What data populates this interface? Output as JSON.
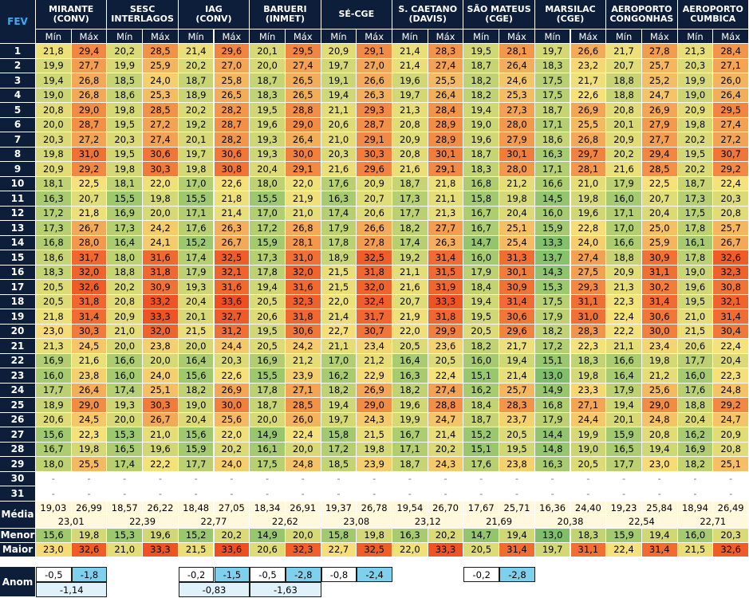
{
  "chart_data": {
    "type": "table",
    "title": "FEV",
    "stations": [
      {
        "name": "MIRANTE",
        "sub": "(CONV)"
      },
      {
        "name": "SESC",
        "sub": "INTERLAGOS"
      },
      {
        "name": "IAG",
        "sub": "(CONV)"
      },
      {
        "name": "BARUERI",
        "sub": "(INMET)"
      },
      {
        "name": "SÉ-CGE",
        "sub": ""
      },
      {
        "name": "S. CAETANO",
        "sub": "(DAVIS)"
      },
      {
        "name": "SÃO MATEUS",
        "sub": "(CGE)"
      },
      {
        "name": "MARSILAC",
        "sub": "(CGE)"
      },
      {
        "name": "AEROPORTO",
        "sub": "CONGONHAS"
      },
      {
        "name": "AEROPORTO",
        "sub": "CUMBICA"
      }
    ],
    "min_label": "Mín",
    "max_label": "Máx",
    "days": [
      "1",
      "2",
      "3",
      "4",
      "5",
      "6",
      "7",
      "8",
      "9",
      "10",
      "11",
      "12",
      "13",
      "14",
      "15",
      "16",
      "17",
      "18",
      "19",
      "20",
      "21",
      "22",
      "23",
      "24",
      "25",
      "26",
      "27",
      "28",
      "29",
      "30",
      "31"
    ],
    "rows": [
      [
        "21,8",
        "29,4",
        "20,2",
        "28,5",
        "21,4",
        "29,6",
        "20,1",
        "29,5",
        "20,9",
        "29,1",
        "21,4",
        "28,3",
        "19,5",
        "28,1",
        "19,7",
        "26,6",
        "21,7",
        "27,8",
        "21,3",
        "28,4"
      ],
      [
        "19,9",
        "27,7",
        "19,9",
        "25,9",
        "20,2",
        "27,0",
        "20,0",
        "27,4",
        "19,7",
        "27,0",
        "21,4",
        "27,4",
        "18,7",
        "26,4",
        "18,3",
        "23,2",
        "20,7",
        "25,7",
        "20,3",
        "27,1"
      ],
      [
        "19,4",
        "26,8",
        "18,5",
        "24,0",
        "18,7",
        "25,8",
        "18,7",
        "26,5",
        "19,1",
        "26,6",
        "19,6",
        "25,5",
        "18,2",
        "24,6",
        "17,5",
        "21,7",
        "18,8",
        "25,2",
        "19,9",
        "26,0"
      ],
      [
        "19,0",
        "26,8",
        "18,6",
        "25,3",
        "18,9",
        "26,5",
        "18,3",
        "26,5",
        "19,4",
        "26,3",
        "19,7",
        "26,4",
        "18,2",
        "25,3",
        "17,5",
        "22,6",
        "18,8",
        "24,7",
        "19,0",
        "26,4"
      ],
      [
        "20,8",
        "29,0",
        "19,8",
        "28,5",
        "20,2",
        "28,2",
        "19,5",
        "28,8",
        "21,1",
        "29,3",
        "21,3",
        "28,4",
        "19,4",
        "27,3",
        "18,7",
        "26,9",
        "20,8",
        "26,9",
        "20,9",
        "29,5"
      ],
      [
        "20,0",
        "28,7",
        "19,5",
        "27,2",
        "19,2",
        "28,7",
        "19,6",
        "29,0",
        "20,6",
        "28,7",
        "20,8",
        "28,9",
        "19,0",
        "28,0",
        "17,1",
        "25,5",
        "20,1",
        "27,9",
        "19,8",
        "27,4"
      ],
      [
        "20,3",
        "27,2",
        "20,3",
        "27,4",
        "20,1",
        "28,2",
        "19,3",
        "26,4",
        "21,0",
        "29,1",
        "20,9",
        "28,9",
        "19,6",
        "27,9",
        "18,6",
        "26,8",
        "20,9",
        "27,7",
        "20,2",
        "27,2"
      ],
      [
        "19,8",
        "31,0",
        "19,5",
        "30,6",
        "19,7",
        "30,6",
        "19,3",
        "30,0",
        "20,3",
        "30,3",
        "20,8",
        "30,1",
        "18,7",
        "30,1",
        "16,3",
        "29,7",
        "20,2",
        "29,4",
        "19,5",
        "30,7"
      ],
      [
        "20,9",
        "29,2",
        "19,8",
        "30,3",
        "19,8",
        "30,8",
        "20,4",
        "29,1",
        "21,6",
        "29,6",
        "21,6",
        "29,1",
        "18,3",
        "28,0",
        "17,1",
        "28,1",
        "21,6",
        "28,5",
        "20,2",
        "29,2"
      ],
      [
        "18,1",
        "22,5",
        "18,1",
        "22,0",
        "17,0",
        "22,6",
        "18,0",
        "22,0",
        "17,6",
        "20,9",
        "18,7",
        "21,8",
        "16,8",
        "21,2",
        "16,6",
        "21,0",
        "17,9",
        "22,5",
        "18,7",
        "22,4"
      ],
      [
        "16,3",
        "20,7",
        "15,5",
        "19,8",
        "15,5",
        "21,8",
        "15,5",
        "21,9",
        "16,3",
        "20,7",
        "17,3",
        "21,1",
        "15,8",
        "19,8",
        "14,5",
        "19,8",
        "16,0",
        "20,7",
        "17,3",
        "20,3"
      ],
      [
        "17,2",
        "21,8",
        "16,9",
        "20,0",
        "17,1",
        "21,4",
        "17,0",
        "21,0",
        "17,4",
        "20,6",
        "17,7",
        "21,3",
        "16,7",
        "20,4",
        "16,0",
        "19,6",
        "17,1",
        "20,4",
        "17,5",
        "20,8"
      ],
      [
        "17,3",
        "26,7",
        "17,3",
        "24,2",
        "17,6",
        "26,3",
        "17,2",
        "26,8",
        "17,9",
        "26,6",
        "18,2",
        "27,7",
        "16,7",
        "25,1",
        "15,9",
        "22,8",
        "17,0",
        "25,0",
        "17,8",
        "25,7"
      ],
      [
        "16,8",
        "28,0",
        "16,4",
        "24,1",
        "15,2",
        "26,7",
        "15,9",
        "28,1",
        "17,8",
        "27,8",
        "17,4",
        "26,3",
        "14,7",
        "25,4",
        "13,3",
        "24,0",
        "16,6",
        "25,9",
        "16,1",
        "26,7"
      ],
      [
        "18,6",
        "31,7",
        "18,0",
        "31,6",
        "17,4",
        "32,5",
        "17,3",
        "31,0",
        "18,9",
        "32,5",
        "19,2",
        "31,4",
        "16,0",
        "31,3",
        "13,7",
        "27,4",
        "18,8",
        "30,9",
        "17,8",
        "32,6"
      ],
      [
        "18,3",
        "32,0",
        "18,8",
        "31,8",
        "17,9",
        "32,1",
        "17,8",
        "32,0",
        "21,5",
        "31,8",
        "21,1",
        "31,5",
        "17,9",
        "30,1",
        "14,3",
        "27,5",
        "20,9",
        "31,1",
        "19,0",
        "32,3"
      ],
      [
        "20,5",
        "32,6",
        "20,2",
        "30,9",
        "19,3",
        "31,6",
        "19,4",
        "31,6",
        "21,5",
        "32,0",
        "21,6",
        "31,9",
        "18,4",
        "30,9",
        "15,3",
        "29,3",
        "21,3",
        "30,2",
        "19,6",
        "30,8"
      ],
      [
        "20,5",
        "31,8",
        "20,8",
        "33,2",
        "20,4",
        "33,6",
        "20,5",
        "32,3",
        "22,0",
        "32,4",
        "20,7",
        "33,3",
        "19,4",
        "31,4",
        "17,5",
        "31,1",
        "22,3",
        "31,4",
        "19,5",
        "32,1"
      ],
      [
        "21,8",
        "31,4",
        "20,9",
        "33,3",
        "20,1",
        "32,7",
        "20,6",
        "31,8",
        "21,4",
        "31,7",
        "21,9",
        "31,8",
        "19,5",
        "30,6",
        "17,9",
        "31,0",
        "22,4",
        "30,6",
        "21,0",
        "31,4"
      ],
      [
        "23,0",
        "30,3",
        "21,0",
        "32,0",
        "21,5",
        "31,2",
        "19,5",
        "30,6",
        "22,7",
        "30,7",
        "22,0",
        "29,9",
        "20,5",
        "29,6",
        "18,2",
        "28,3",
        "22,2",
        "30,0",
        "21,5",
        "30,4"
      ],
      [
        "21,3",
        "24,5",
        "20,0",
        "23,8",
        "20,0",
        "24,4",
        "20,5",
        "24,2",
        "21,1",
        "23,4",
        "20,5",
        "23,6",
        "18,2",
        "21,7",
        "17,2",
        "22,3",
        "21,1",
        "23,4",
        "20,6",
        "22,4"
      ],
      [
        "16,9",
        "21,6",
        "16,6",
        "20,0",
        "16,4",
        "20,3",
        "16,9",
        "21,2",
        "17,0",
        "21,2",
        "16,4",
        "20,5",
        "16,0",
        "19,4",
        "15,1",
        "18,3",
        "16,6",
        "19,8",
        "17,7",
        "20,4"
      ],
      [
        "16,0",
        "23,8",
        "16,0",
        "24,0",
        "15,6",
        "22,6",
        "15,5",
        "23,9",
        "16,2",
        "22,9",
        "16,3",
        "22,4",
        "15,1",
        "21,4",
        "13,0",
        "19,8",
        "16,4",
        "21,2",
        "16,0",
        "22,3"
      ],
      [
        "17,7",
        "26,4",
        "17,4",
        "25,1",
        "18,2",
        "26,9",
        "17,8",
        "27,1",
        "18,2",
        "26,9",
        "18,2",
        "27,4",
        "16,2",
        "25,7",
        "14,9",
        "23,3",
        "17,9",
        "25,6",
        "17,6",
        "24,8"
      ],
      [
        "18,9",
        "29,0",
        "19,3",
        "30,3",
        "19,0",
        "30,0",
        "18,7",
        "28,5",
        "19,4",
        "29,0",
        "19,6",
        "28,8",
        "18,4",
        "28,3",
        "16,8",
        "27,1",
        "19,4",
        "29,0",
        "18,8",
        "29,2"
      ],
      [
        "20,6",
        "24,5",
        "20,0",
        "26,7",
        "20,4",
        "25,6",
        "20,0",
        "26,0",
        "19,7",
        "24,3",
        "19,9",
        "24,7",
        "18,7",
        "23,7",
        "17,9",
        "24,4",
        "20,1",
        "24,8",
        "20,4",
        "24,7"
      ],
      [
        "15,6",
        "22,3",
        "15,3",
        "21,0",
        "15,6",
        "22,0",
        "14,9",
        "22,4",
        "15,8",
        "21,5",
        "16,7",
        "21,4",
        "15,2",
        "20,5",
        "14,4",
        "19,9",
        "15,9",
        "20,8",
        "16,2",
        "20,9"
      ],
      [
        "16,7",
        "19,8",
        "16,5",
        "19,6",
        "15,9",
        "20,2",
        "16,1",
        "20,0",
        "17,2",
        "19,8",
        "17,1",
        "20,2",
        "15,1",
        "19,5",
        "14,8",
        "19,0",
        "16,5",
        "19,4",
        "16,9",
        "20,8"
      ],
      [
        "18,0",
        "25,5",
        "17,4",
        "22,2",
        "17,7",
        "24,0",
        "17,5",
        "24,8",
        "18,5",
        "23,9",
        "18,7",
        "24,3",
        "17,6",
        "23,8",
        "16,3",
        "20,5",
        "17,7",
        "23,0",
        "18,2",
        "25,1"
      ],
      [
        "-",
        "-",
        "-",
        "-",
        "-",
        "-",
        "-",
        "-",
        "-",
        "-",
        "-",
        "-",
        "-",
        "-",
        "-",
        "-",
        "-",
        "-",
        "-",
        "-"
      ],
      [
        "-",
        "-",
        "-",
        "-",
        "-",
        "-",
        "-",
        "-",
        "-",
        "-",
        "-",
        "-",
        "-",
        "-",
        "-",
        "-",
        "-",
        "-",
        "-",
        "-"
      ]
    ],
    "media_label": "Média",
    "media": [
      "19,03",
      "26,99",
      "18,57",
      "26,22",
      "18,48",
      "27,05",
      "18,34",
      "26,91",
      "19,37",
      "26,78",
      "19,54",
      "26,70",
      "17,67",
      "25,71",
      "16,36",
      "24,40",
      "19,23",
      "25,84",
      "18,94",
      "26,49"
    ],
    "media_avg": [
      "23,01",
      "22,39",
      "22,77",
      "22,62",
      "23,08",
      "23,12",
      "21,69",
      "20,38",
      "22,54",
      "22,71"
    ],
    "menor_label": "Menor",
    "menor": [
      "15,6",
      "19,8",
      "15,3",
      "19,6",
      "15,2",
      "20,2",
      "14,9",
      "20,0",
      "15,8",
      "19,8",
      "16,3",
      "20,2",
      "14,7",
      "19,4",
      "13,0",
      "18,3",
      "15,9",
      "19,4",
      "16,0",
      "20,3"
    ],
    "maior_label": "Maior",
    "maior": [
      "23,0",
      "32,6",
      "21,0",
      "33,3",
      "21,5",
      "33,6",
      "20,6",
      "32,3",
      "22,7",
      "32,5",
      "22,0",
      "33,3",
      "20,5",
      "31,4",
      "19,7",
      "31,1",
      "22,4",
      "31,4",
      "21,5",
      "32,6"
    ],
    "anom_label": "Anom",
    "anom_cells": [
      {
        "col": 0,
        "min": "-0,5",
        "max": "-1,8",
        "avg": "-1,14"
      },
      {
        "col": 2,
        "min": "-0,2",
        "max": "-1,5",
        "avg": "-0,83"
      },
      {
        "col": 3,
        "min": "-0,5",
        "max": "-2,8",
        "avg": "-1,63"
      },
      {
        "col": 4,
        "min": "-0,8",
        "max": "-2,4",
        "avg": ""
      },
      {
        "col": 6,
        "min": "-0,2",
        "max": "-2,8",
        "avg": ""
      }
    ],
    "color_scale": {
      "low": "#7fbf6a",
      "mid": "#f6e27a",
      "high": "#ee4a1d",
      "low_value": 13.0,
      "high_value": 34.0
    }
  }
}
